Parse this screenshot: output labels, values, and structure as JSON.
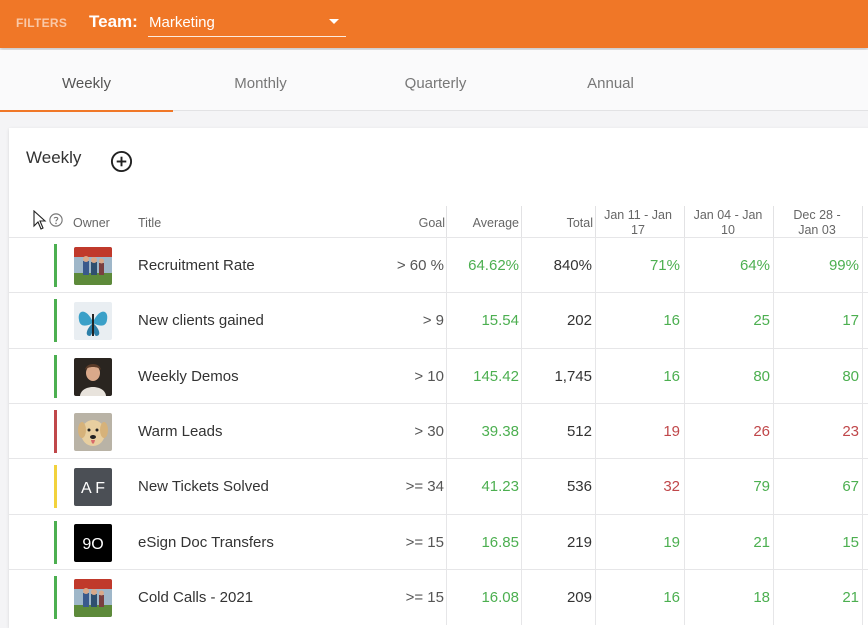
{
  "topbar": {
    "filters_label": "FILTERS",
    "team_label": "Team:",
    "team_value": "Marketing",
    "background": "#f07727"
  },
  "tabs": [
    {
      "label": "Weekly",
      "active": true
    },
    {
      "label": "Monthly",
      "active": false
    },
    {
      "label": "Quarterly",
      "active": false
    },
    {
      "label": "Annual",
      "active": false
    }
  ],
  "card": {
    "title": "Weekly",
    "add_icon": "add-circle-icon"
  },
  "columns": {
    "owner": "Owner",
    "title": "Title",
    "goal": "Goal",
    "average": "Average",
    "total": "Total",
    "week1": "Jan 11 - Jan 17",
    "week2": "Jan 04 - Jan 10",
    "week3": "Dec 28 - Jan 03"
  },
  "status_colors": {
    "green": "#4caf50",
    "red": "#c0474a",
    "yellow": "#f2d23c"
  },
  "rows": [
    {
      "status": "green",
      "avatar": "people-photo",
      "title": "Recruitment Rate",
      "goal": "> 60 %",
      "average": "64.62%",
      "total": "840%",
      "w1": "71%",
      "w2": "64%",
      "w3": "99%",
      "w1c": "green",
      "w2c": "green",
      "w3c": "green"
    },
    {
      "status": "green",
      "avatar": "butterfly-photo",
      "title": "New clients gained",
      "goal": "> 9",
      "average": "15.54",
      "total": "202",
      "w1": "16",
      "w2": "25",
      "w3": "17",
      "w1c": "green",
      "w2c": "green",
      "w3c": "green"
    },
    {
      "status": "green",
      "avatar": "person-photo",
      "title": "Weekly Demos",
      "goal": "> 10",
      "average": "145.42",
      "total": "1,745",
      "w1": "16",
      "w2": "80",
      "w3": "80",
      "w1c": "green",
      "w2c": "green",
      "w3c": "green"
    },
    {
      "status": "red",
      "avatar": "dog-photo",
      "title": "Warm Leads",
      "goal": "> 30",
      "average": "39.38",
      "total": "512",
      "w1": "19",
      "w2": "26",
      "w3": "23",
      "w1c": "red",
      "w2c": "red",
      "w3c": "red"
    },
    {
      "status": "yellow",
      "avatar": "initials-avatar",
      "avatar_text": "A F",
      "title": "New Tickets Solved",
      "goal": ">= 34",
      "average": "41.23",
      "total": "536",
      "w1": "32",
      "w2": "79",
      "w3": "67",
      "w1c": "red",
      "w2c": "green",
      "w3c": "green"
    },
    {
      "status": "green",
      "avatar": "logo-avatar",
      "avatar_text": "9O",
      "title": "eSign Doc Transfers",
      "goal": ">= 15",
      "average": "16.85",
      "total": "219",
      "w1": "19",
      "w2": "21",
      "w3": "15",
      "w1c": "green",
      "w2c": "green",
      "w3c": "green"
    },
    {
      "status": "green",
      "avatar": "people-photo",
      "title": "Cold Calls - 2021",
      "goal": ">= 15",
      "average": "16.08",
      "total": "209",
      "w1": "16",
      "w2": "18",
      "w3": "21",
      "w1c": "green",
      "w2c": "green",
      "w3c": "green"
    }
  ]
}
